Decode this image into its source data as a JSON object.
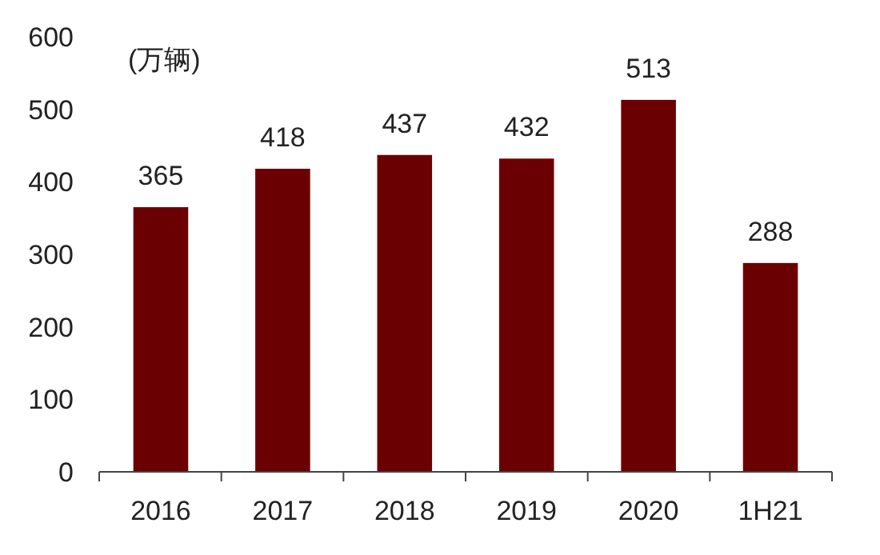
{
  "chart_data": {
    "type": "bar",
    "ylabel": "(万辆)",
    "categories": [
      "2016",
      "2017",
      "2018",
      "2019",
      "2020",
      "1H21"
    ],
    "values": [
      365,
      418,
      437,
      432,
      513,
      288
    ],
    "color": "#6b0003",
    "ylim": [
      0,
      600
    ],
    "yticks": [
      0,
      100,
      200,
      300,
      400,
      500,
      600
    ],
    "data_labels": true,
    "grid": false
  }
}
